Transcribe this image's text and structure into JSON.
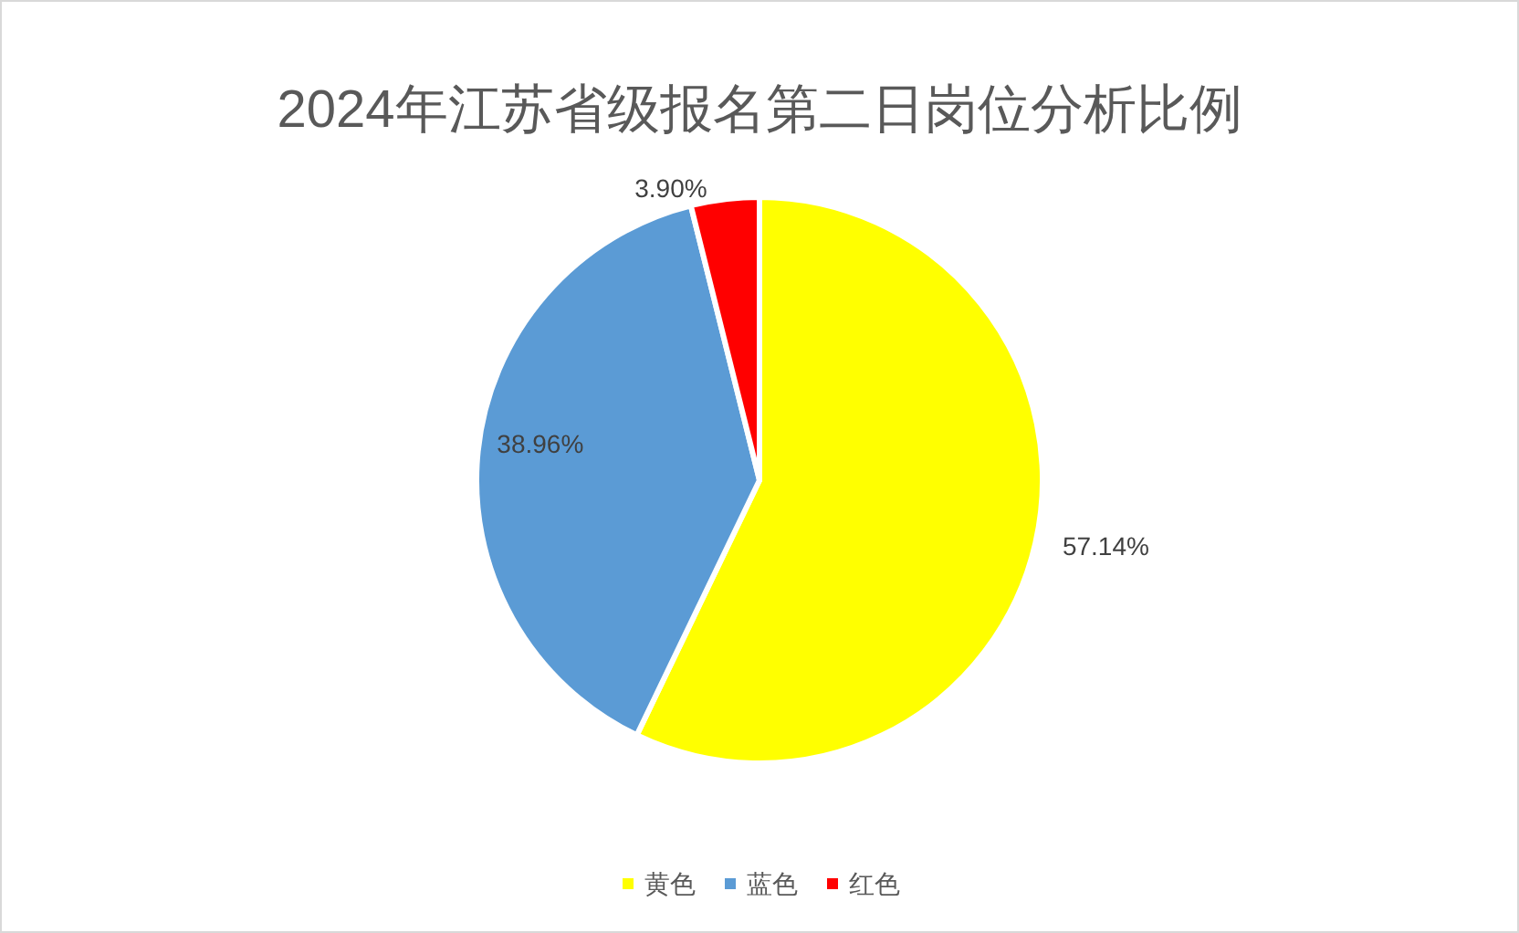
{
  "chart_data": {
    "type": "pie",
    "title": "2024年江苏省级报名第二日岗位分析比例",
    "categories": [
      "黄色",
      "蓝色",
      "红色"
    ],
    "values": [
      57.14,
      38.96,
      3.9
    ],
    "colors": [
      "#ffff00",
      "#5b9bd5",
      "#ff0000"
    ],
    "value_labels": [
      "57.14%",
      "38.96%",
      "3.90%"
    ],
    "legend": "bottom"
  }
}
